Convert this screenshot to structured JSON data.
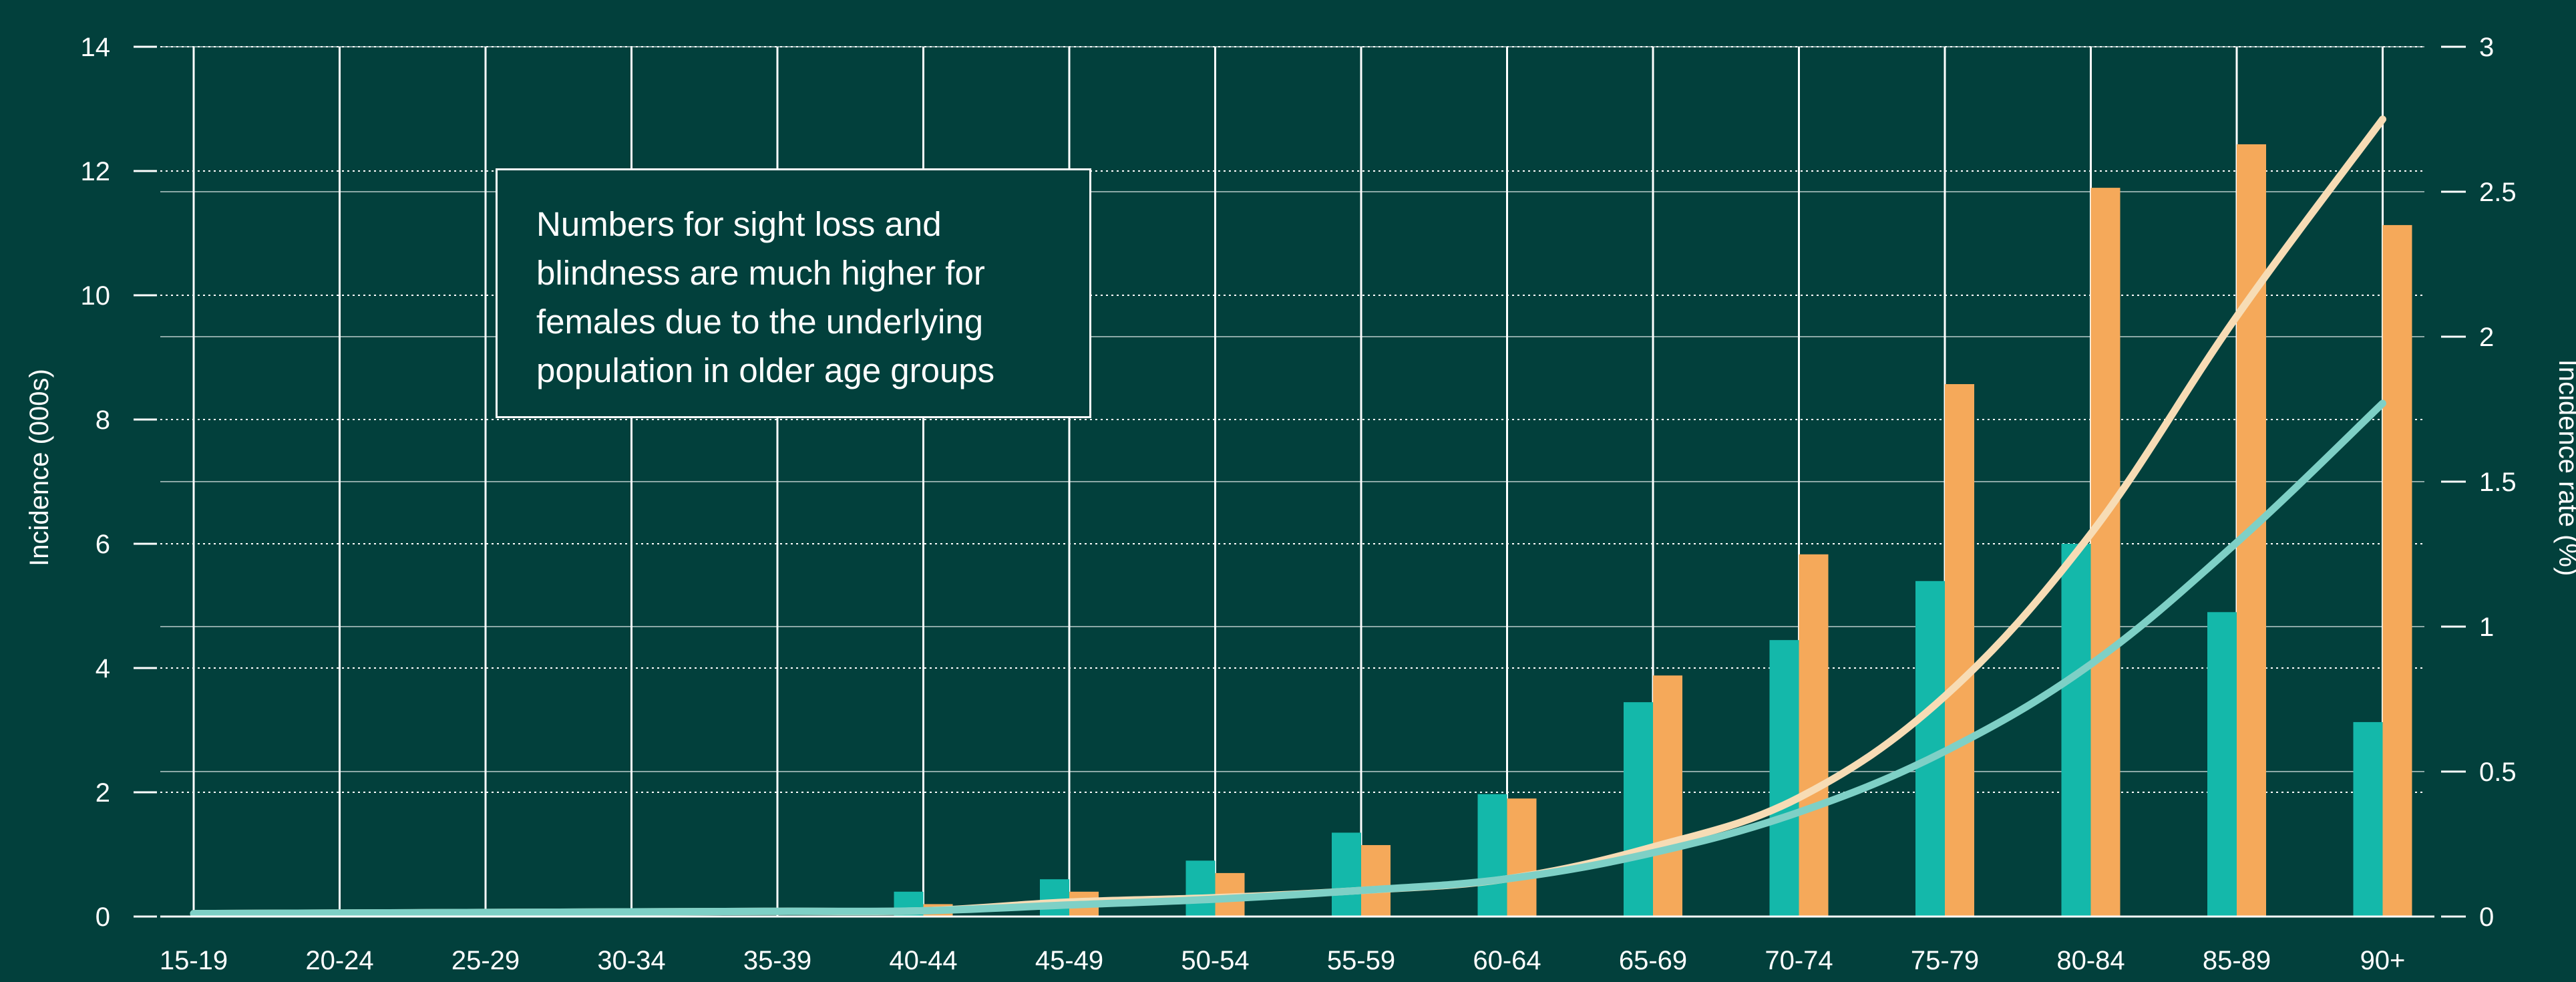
{
  "chart_data": {
    "type": "bar",
    "categories": [
      "15-19",
      "20-24",
      "25-29",
      "30-34",
      "35-39",
      "40-44",
      "45-49",
      "50-54",
      "55-59",
      "60-64",
      "65-69",
      "70-74",
      "75-79",
      "80-84",
      "85-89",
      "90+"
    ],
    "series": [
      {
        "kind": "bar",
        "axis": "left",
        "color": "#14b8aa",
        "values": [
          0,
          0,
          0,
          0,
          0,
          0.4,
          0.6,
          0.9,
          1.35,
          1.97,
          3.45,
          4.45,
          5.4,
          6.0,
          4.9,
          3.13
        ]
      },
      {
        "kind": "bar",
        "axis": "left",
        "color": "#f5a95a",
        "values": [
          0,
          0,
          0,
          0,
          0,
          0.2,
          0.4,
          0.7,
          1.15,
          1.9,
          3.88,
          5.83,
          8.57,
          11.73,
          12.43,
          11.13
        ]
      },
      {
        "kind": "line",
        "axis": "right",
        "color": "#f7dcb5",
        "values": [
          0.01,
          0.012,
          0.014,
          0.016,
          0.018,
          0.02,
          0.05,
          0.065,
          0.09,
          0.13,
          0.24,
          0.41,
          0.76,
          1.32,
          2.07,
          2.75
        ]
      },
      {
        "kind": "line",
        "axis": "right",
        "color": "#7ed0c6",
        "values": [
          0.01,
          0.012,
          0.014,
          0.016,
          0.018,
          0.02,
          0.04,
          0.06,
          0.09,
          0.13,
          0.22,
          0.36,
          0.57,
          0.87,
          1.29,
          1.77
        ]
      }
    ],
    "ylabel": "Incidence (000s)",
    "y2label": "Incidence rate (%)",
    "ylim": [
      0,
      14
    ],
    "yticks": [
      "0",
      "2",
      "4",
      "6",
      "8",
      "10",
      "12",
      "14"
    ],
    "y2lim": [
      0,
      3
    ],
    "y2ticks": [
      "0",
      "0.5",
      "1",
      "1.5",
      "2",
      "2.5",
      "3"
    ],
    "annotation": "Numbers for sight loss and blindness are much higher for females due to the underlying population in older age groups",
    "grid": true
  }
}
